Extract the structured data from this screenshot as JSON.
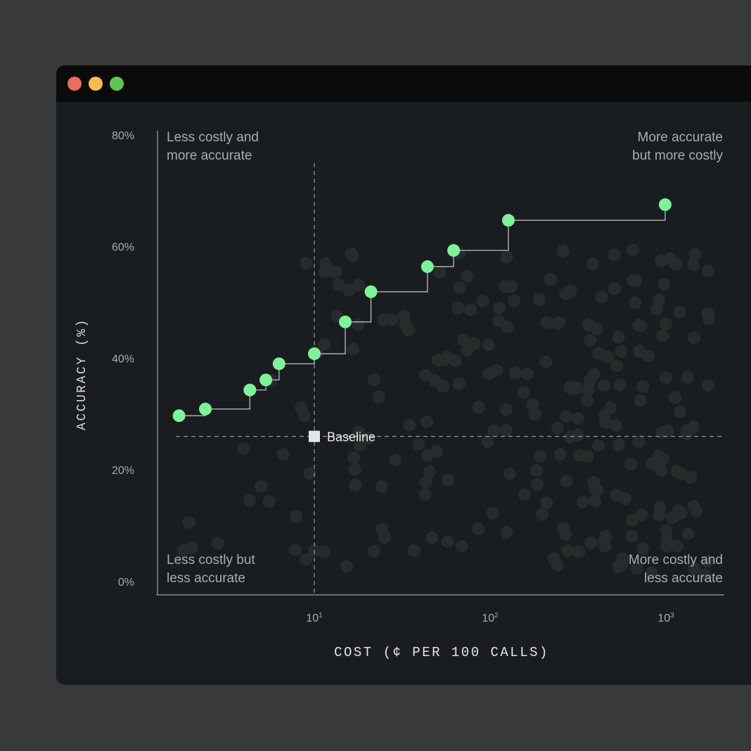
{
  "window": {
    "controls": [
      {
        "name": "close",
        "color": "#ed6a5e"
      },
      {
        "name": "minimize",
        "color": "#f5bf4f"
      },
      {
        "name": "zoom",
        "color": "#61c554"
      }
    ]
  },
  "chart_data": {
    "type": "scatter",
    "xlabel": "COST (¢ PER 100 CALLS)",
    "ylabel": "ACCURACY (%)",
    "x_scale": "log",
    "xlim": [
      1.4,
      1600
    ],
    "ylim": [
      0,
      80
    ],
    "x_ticks": [
      {
        "value": 10,
        "base": "10",
        "exp": "1"
      },
      {
        "value": 100,
        "base": "10",
        "exp": "2"
      },
      {
        "value": 1000,
        "base": "10",
        "exp": "3"
      }
    ],
    "y_ticks": [
      {
        "value": 0,
        "label": "0%"
      },
      {
        "value": 20,
        "label": "20%"
      },
      {
        "value": 40,
        "label": "40%"
      },
      {
        "value": 60,
        "label": "60%"
      },
      {
        "value": 80,
        "label": "80%"
      }
    ],
    "grid": false,
    "quadrant_labels": {
      "top_left": [
        "Less costly and",
        "more accurate"
      ],
      "top_right": [
        "More accurate",
        "but more costly"
      ],
      "bottom_left": [
        "Less costly but",
        "less accurate"
      ],
      "bottom_right": [
        "More costly and",
        "less accurate"
      ]
    },
    "baseline": {
      "label": "Baseline",
      "x": 10,
      "y": 26
    },
    "frontier": {
      "color": "#7ef29a",
      "step_line": true,
      "points": [
        {
          "x": 1.7,
          "y": 29.7
        },
        {
          "x": 2.4,
          "y": 30.9
        },
        {
          "x": 4.3,
          "y": 34.3
        },
        {
          "x": 5.3,
          "y": 36.1
        },
        {
          "x": 6.3,
          "y": 39.0
        },
        {
          "x": 10,
          "y": 40.8
        },
        {
          "x": 15,
          "y": 46.5
        },
        {
          "x": 21,
          "y": 51.9
        },
        {
          "x": 44,
          "y": 56.4
        },
        {
          "x": 62,
          "y": 59.3
        },
        {
          "x": 127,
          "y": 64.7
        },
        {
          "x": 990,
          "y": 67.5
        }
      ]
    },
    "background_points_color": "#262c2c"
  }
}
